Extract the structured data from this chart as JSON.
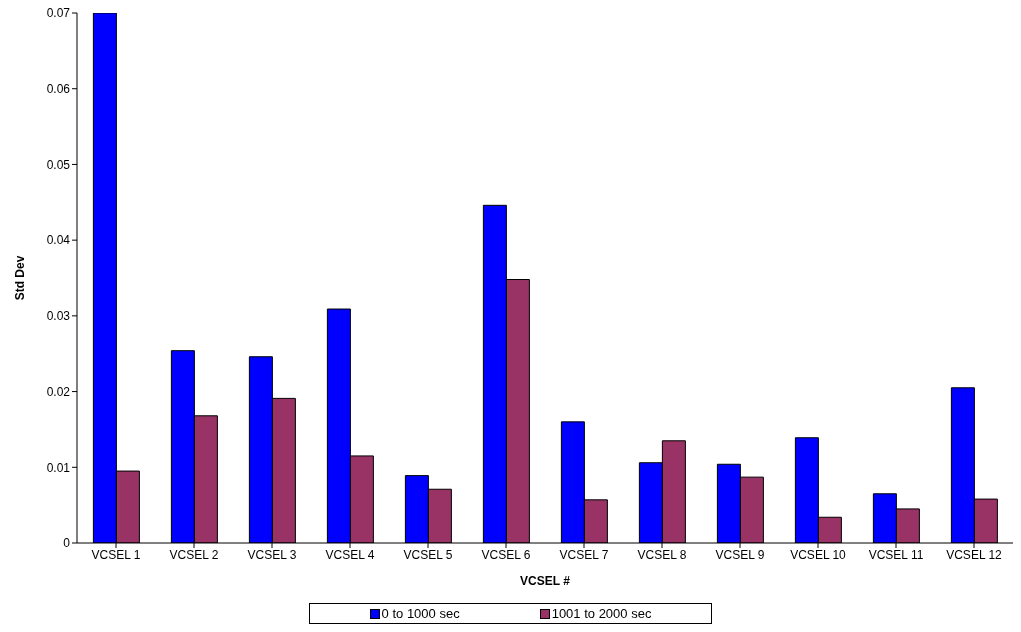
{
  "chart_data": {
    "type": "bar",
    "xlabel": "VCSEL #",
    "ylabel": "Std Dev",
    "categories": [
      "VCSEL 1",
      "VCSEL 2",
      "VCSEL 3",
      "VCSEL 4",
      "VCSEL 5",
      "VCSEL 6",
      "VCSEL 7",
      "VCSEL 8",
      "VCSEL 9",
      "VCSEL 10",
      "VCSEL 11",
      "VCSEL 12"
    ],
    "series": [
      {
        "name": "0 to 1000 sec",
        "color": "#0000ff",
        "values": [
          0.07,
          0.0254,
          0.0246,
          0.0309,
          0.0089,
          0.0446,
          0.016,
          0.0106,
          0.0104,
          0.0139,
          0.0065,
          0.0205
        ]
      },
      {
        "name": "1001 to 2000 sec",
        "color": "#993366",
        "values": [
          0.0095,
          0.0168,
          0.0191,
          0.0115,
          0.0071,
          0.0348,
          0.0057,
          0.0135,
          0.0087,
          0.0034,
          0.0045,
          0.0058
        ]
      }
    ],
    "ylim": [
      0,
      0.07
    ],
    "yticks": [
      0,
      0.01,
      0.02,
      0.03,
      0.04,
      0.05,
      0.06,
      0.07
    ],
    "grid": false,
    "legend": "bottom"
  }
}
